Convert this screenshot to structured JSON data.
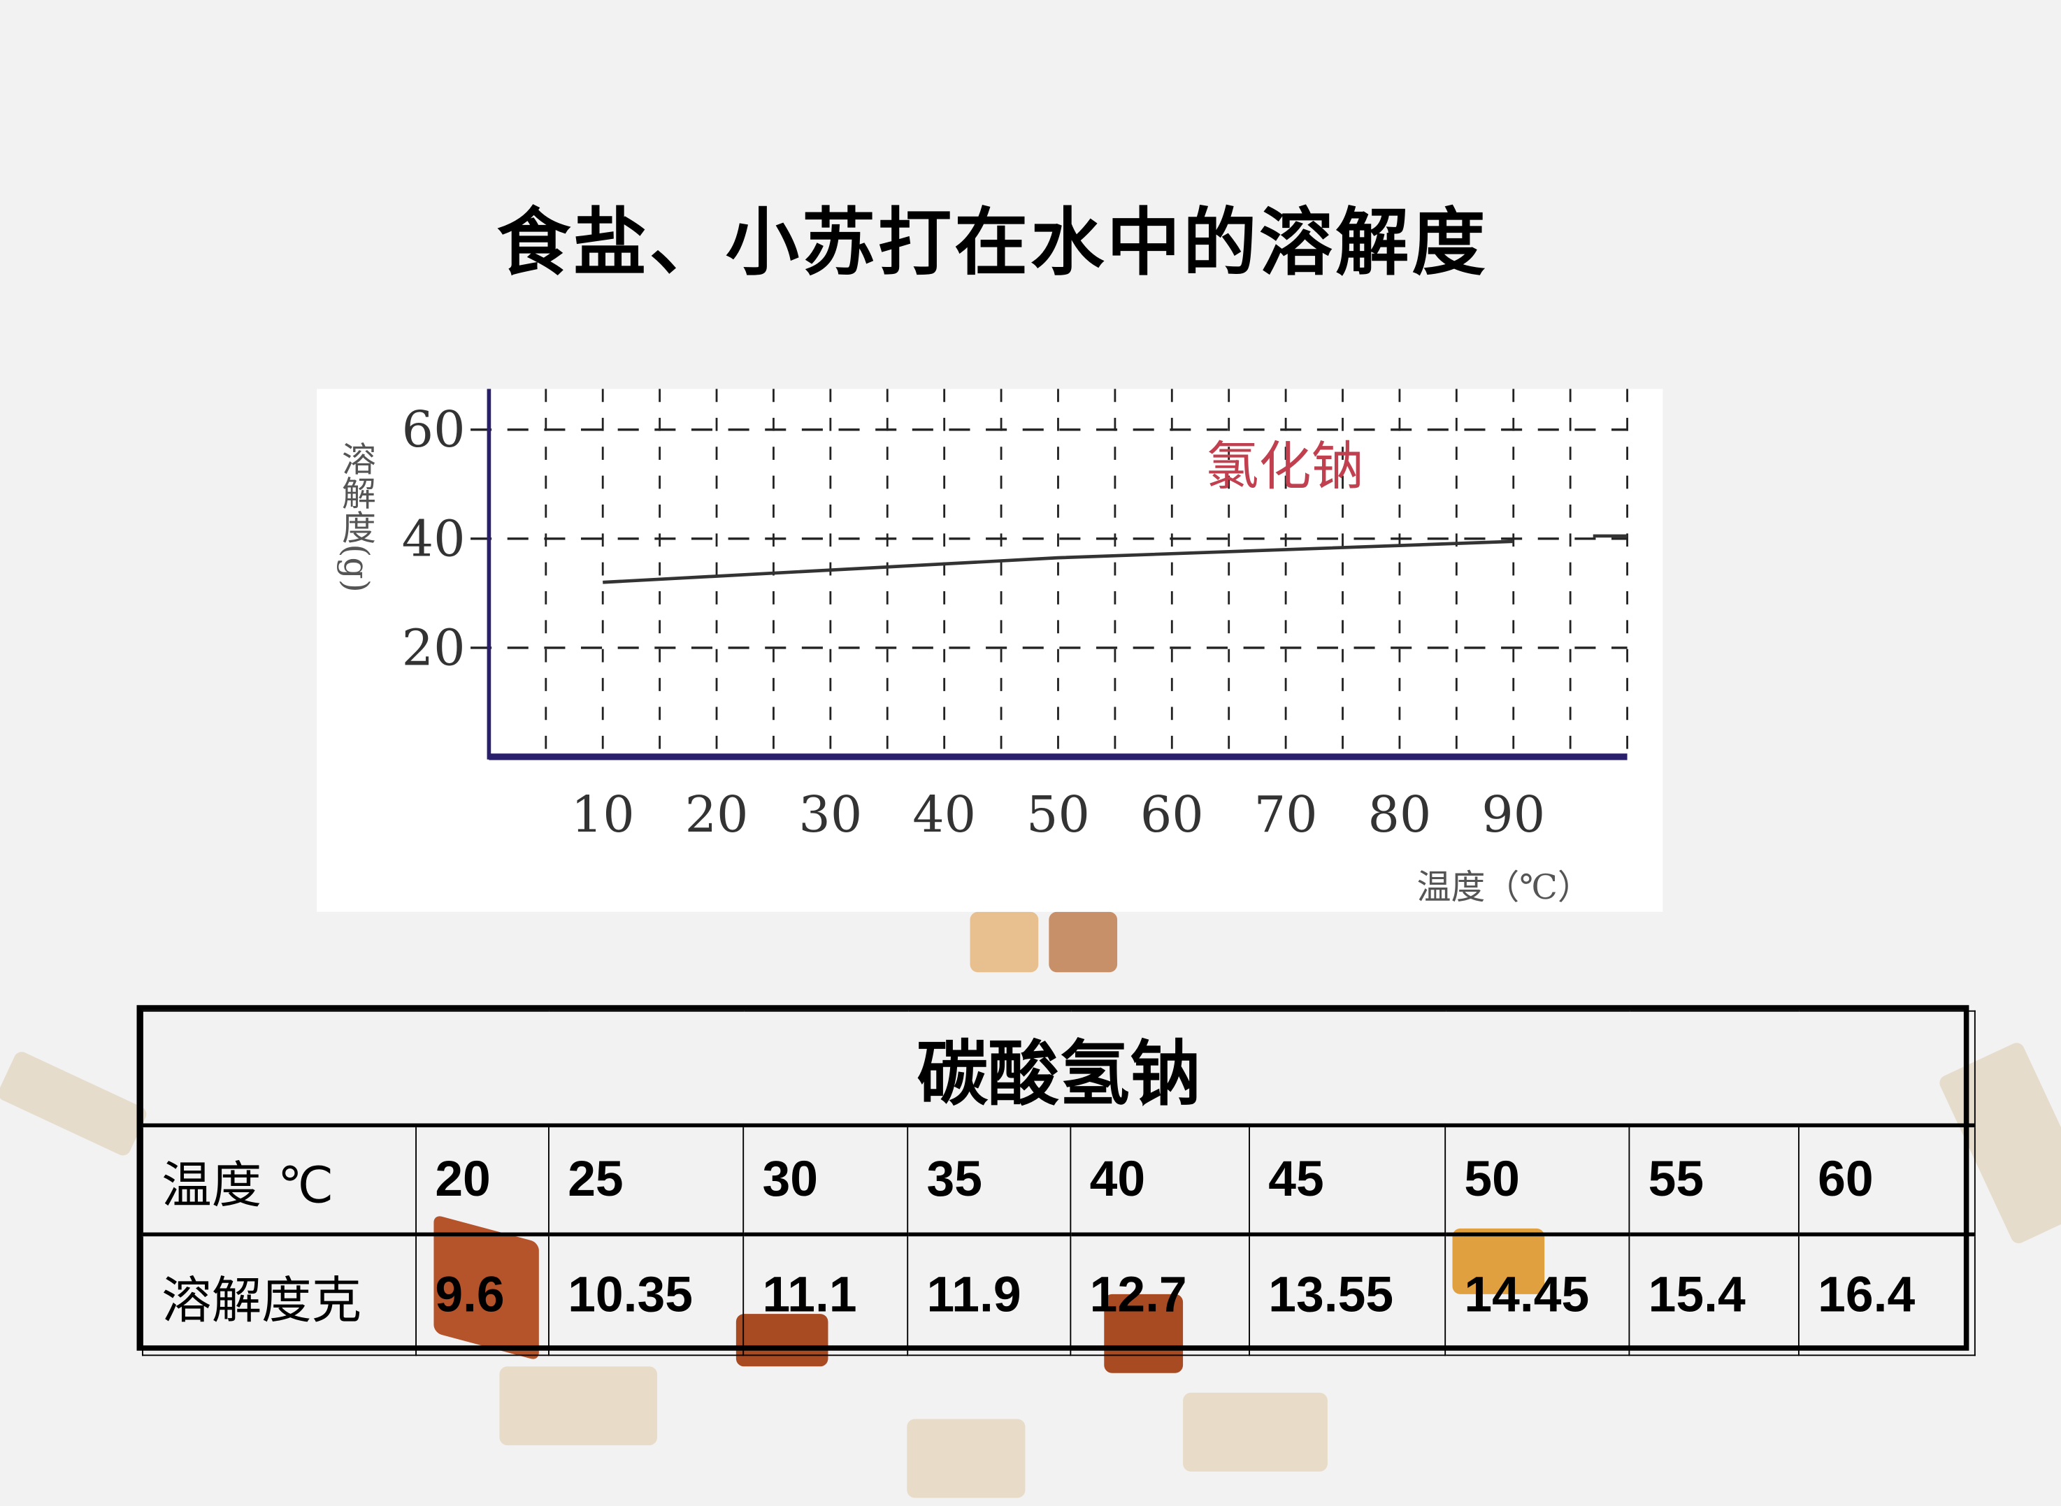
{
  "title": "食盐、小苏打在水中的溶解度",
  "chart_data": {
    "type": "line",
    "title": "",
    "ylabel": "溶解度(g)",
    "xlabel": "温度（℃）",
    "xlim": [
      0,
      100
    ],
    "ylim": [
      0,
      65
    ],
    "xticks": [
      "10",
      "20",
      "30",
      "40",
      "50",
      "60",
      "70",
      "80",
      "90"
    ],
    "yticks": [
      "20",
      "40",
      "60"
    ],
    "grid": true,
    "series": [
      {
        "name": "氯化钠",
        "color": "#c04050",
        "x": [
          10,
          50,
          90
        ],
        "y": [
          32,
          36.5,
          39.5
        ]
      },
      {
        "name": "",
        "x": [
          97,
          100
        ],
        "y": [
          40.5,
          40.5
        ]
      }
    ]
  },
  "table": {
    "title": "碳酸氢钠",
    "row_labels": [
      "温度 ℃",
      "溶解度克"
    ],
    "temperatures": [
      "20",
      "25",
      "30",
      "35",
      "40",
      "45",
      "50",
      "55",
      "60"
    ],
    "solubility": [
      "9.6",
      "10.35",
      "11.1",
      "11.9",
      "12.7",
      "13.55",
      "14.45",
      "15.4",
      "16.4"
    ]
  }
}
